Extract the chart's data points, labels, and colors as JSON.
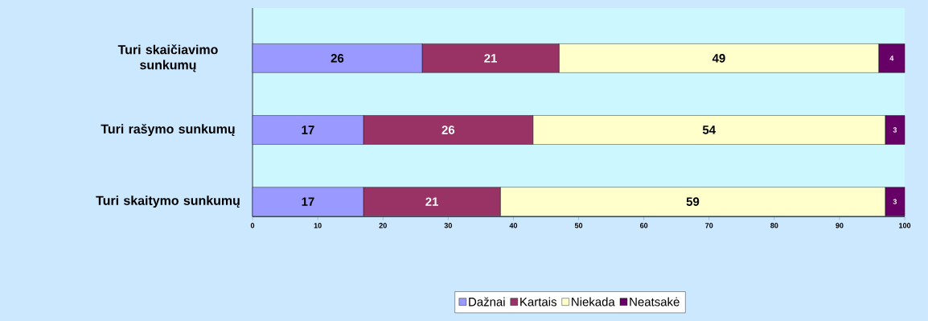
{
  "chart_data": {
    "type": "bar",
    "orientation": "horizontal",
    "stacked": true,
    "categories": [
      "Turi skaičiavimo sunkumų",
      "Turi rašymo sunkumų",
      "Turi skaitymo sunkumų"
    ],
    "series": [
      {
        "name": "Dažnai",
        "color": "#9999ff",
        "values": [
          26,
          17,
          17
        ]
      },
      {
        "name": "Kartais",
        "color": "#993366",
        "values": [
          21,
          26,
          21
        ]
      },
      {
        "name": "Niekada",
        "color": "#ffffcc",
        "values": [
          49,
          54,
          59
        ]
      },
      {
        "name": "Neatsakė",
        "color": "#660066",
        "values": [
          4,
          3,
          3
        ]
      }
    ],
    "xlim": [
      0,
      100
    ],
    "xticks": [
      0,
      10,
      20,
      30,
      40,
      50,
      60,
      70,
      80,
      90,
      100
    ],
    "data_labels": true,
    "legend": "bottom",
    "grid": false
  }
}
